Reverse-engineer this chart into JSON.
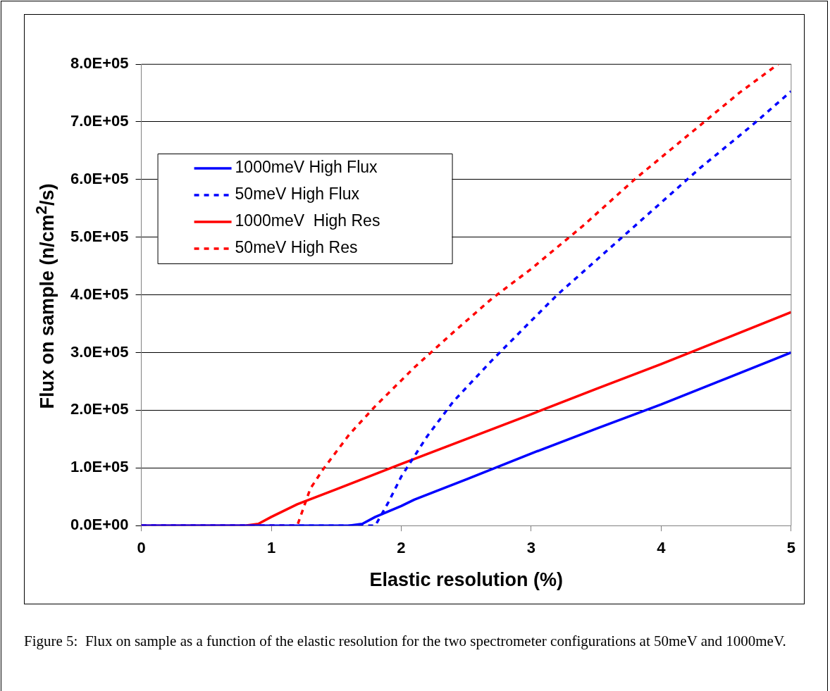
{
  "chart_data": {
    "type": "line",
    "xlabel": "Elastic resolution (%)",
    "ylabel": "Flux on sample (n/cm$^{2}$/s)",
    "xlim": [
      0,
      5
    ],
    "xticks": [
      0,
      1,
      2,
      3,
      4,
      5
    ],
    "ylim": [
      0,
      800000
    ],
    "yticks": [
      {
        "value": 0,
        "label": "0.0E+00"
      },
      {
        "value": 100000,
        "label": "1.0E+05"
      },
      {
        "value": 200000,
        "label": "2.0E+05"
      },
      {
        "value": 300000,
        "label": "3.0E+05"
      },
      {
        "value": 400000,
        "label": "4.0E+05"
      },
      {
        "value": 500000,
        "label": "5.0E+05"
      },
      {
        "value": 600000,
        "label": "6.0E+05"
      },
      {
        "value": 700000,
        "label": "7.0E+05"
      },
      {
        "value": 800000,
        "label": "8.0E+05"
      }
    ],
    "grid": "y",
    "legend": "top left",
    "marker": "none",
    "annotations": [
      "Figure 5:  Flux on sample as a function of the elastic resolution for the two spectrometer configurations at 50meV and 1000meV."
    ],
    "series": [
      {
        "name": "1000meV High Flux",
        "color": "#0000ff",
        "line_style": "solid",
        "x": [
          0,
          1,
          1.6,
          1.7,
          1.8,
          2.0,
          2.1,
          2.5,
          3.0,
          3.5,
          4.0,
          4.5,
          5.0
        ],
        "values": [
          0,
          0,
          0,
          3000,
          15000,
          34000,
          45000,
          80000,
          125000,
          168000,
          210000,
          255000,
          300000
        ]
      },
      {
        "name": "50meV High Flux",
        "color": "#0000ff",
        "line_style": "dashed",
        "x": [
          0,
          1,
          1.8,
          1.9,
          2.0,
          2.1,
          2.2,
          2.4,
          2.7,
          3.0,
          3.2,
          3.5,
          3.7,
          4.0,
          4.3,
          4.7,
          5.0
        ],
        "values": [
          0,
          0,
          0,
          40000,
          85000,
          120000,
          155000,
          215000,
          287000,
          355000,
          400000,
          460000,
          500000,
          560000,
          620000,
          694000,
          753000
        ]
      },
      {
        "name": "1000meV  High Res",
        "color": "#ff0000",
        "line_style": "solid",
        "x": [
          0,
          0.8,
          0.9,
          1.0,
          1.2,
          1.5,
          2.0,
          2.5,
          3.0,
          3.5,
          4.0,
          4.5,
          5.0
        ],
        "values": [
          0,
          0,
          3000,
          15000,
          37000,
          63000,
          107000,
          150000,
          193000,
          237000,
          280000,
          325000,
          370000
        ]
      },
      {
        "name": "50meV High Res",
        "color": "#ff0000",
        "line_style": "dashed",
        "x": [
          0,
          1,
          1.2,
          1.3,
          1.4,
          1.6,
          1.8,
          2.1,
          2.4,
          2.7,
          3.0,
          3.4,
          3.8,
          4.3,
          4.6,
          4.9
        ],
        "values": [
          0,
          0,
          0,
          64000,
          98000,
          158000,
          207000,
          274000,
          335000,
          394000,
          445000,
          520000,
          601000,
          694000,
          750000,
          800000
        ]
      }
    ]
  }
}
